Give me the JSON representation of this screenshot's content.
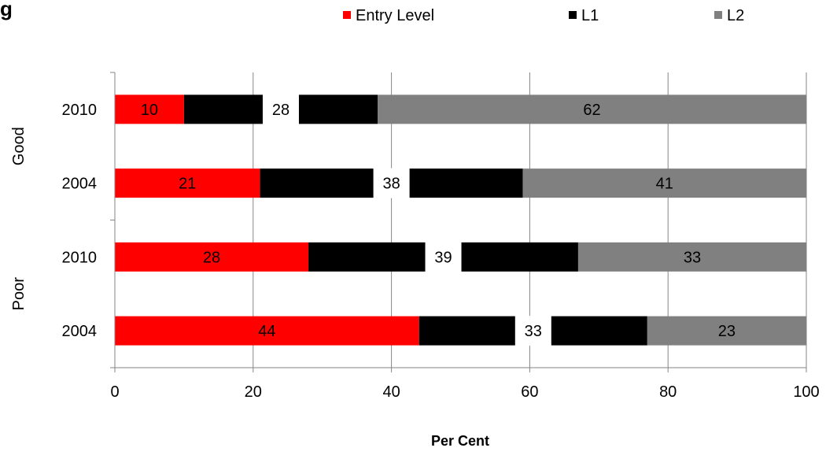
{
  "chart_data": {
    "type": "bar",
    "orientation": "horizontal",
    "stacked": true,
    "title_fragment": "g",
    "xlabel": "Per Cent",
    "ylabel": "",
    "xlim": [
      0,
      100
    ],
    "xticks": [
      "0",
      "20",
      "40",
      "60",
      "80",
      "100"
    ],
    "grid": "vertical",
    "legend_position": "top",
    "groups": [
      "Good",
      "Poor"
    ],
    "categories": [
      {
        "group": "Good",
        "label": "2010"
      },
      {
        "group": "Good",
        "label": "2004"
      },
      {
        "group": "Poor",
        "label": "2010"
      },
      {
        "group": "Poor",
        "label": "2004"
      }
    ],
    "series": [
      {
        "name": "Entry Level",
        "color": "#ff0000",
        "values": [
          10,
          21,
          28,
          44
        ],
        "labels": [
          "10",
          "21",
          "28",
          "44"
        ]
      },
      {
        "name": "L1",
        "color": "#000000",
        "values": [
          28,
          38,
          39,
          33
        ],
        "labels": [
          "28",
          "38",
          "39",
          "33"
        ]
      },
      {
        "name": "L2",
        "color": "#808080",
        "values": [
          62,
          41,
          33,
          23
        ],
        "labels": [
          "62",
          "41",
          "33",
          "23"
        ]
      }
    ]
  }
}
